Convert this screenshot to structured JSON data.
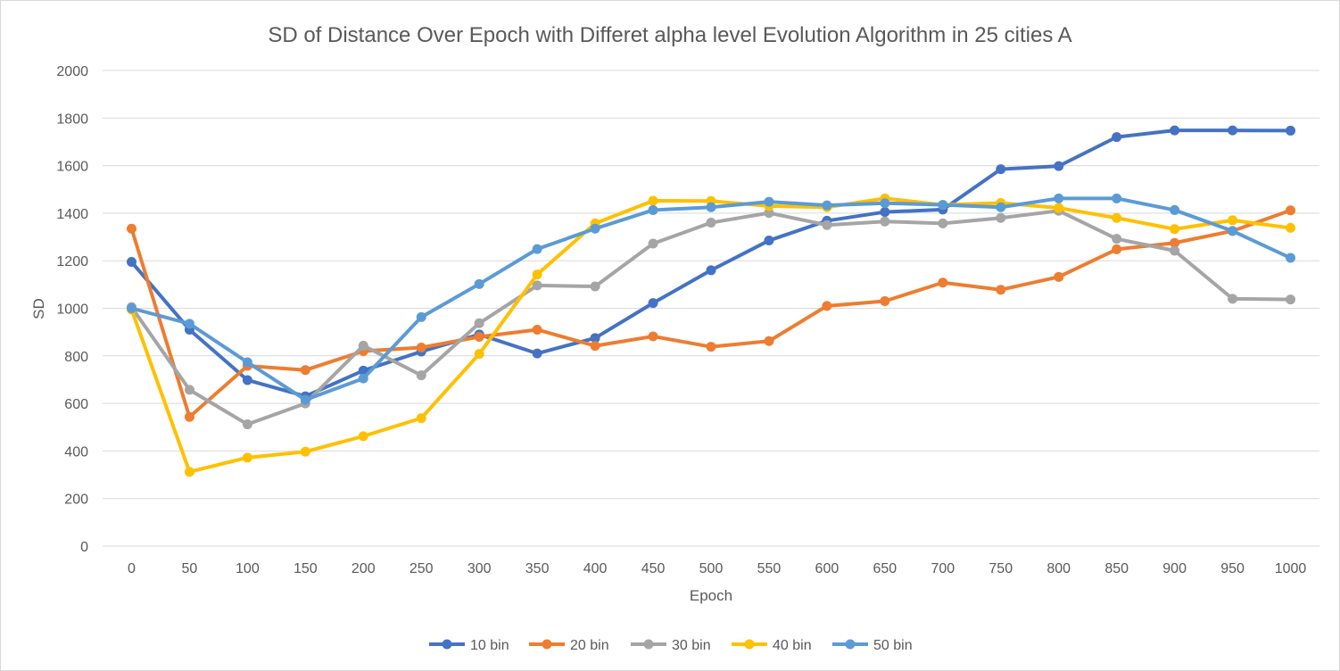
{
  "chart_data": {
    "type": "line",
    "title": "SD of Distance Over Epoch with Differet alpha level Evolution Algorithm in 25 cities A",
    "xlabel": "Epoch",
    "ylabel": "SD",
    "ylim": [
      0,
      2000
    ],
    "y_ticks": [
      "0",
      "200",
      "400",
      "600",
      "800",
      "1000",
      "1200",
      "1400",
      "1600",
      "1800",
      "2000"
    ],
    "grid": true,
    "legend_position": "bottom",
    "categories": [
      "0",
      "50",
      "100",
      "150",
      "200",
      "250",
      "300",
      "350",
      "400",
      "450",
      "500",
      "550",
      "600",
      "650",
      "700",
      "750",
      "800",
      "850",
      "900",
      "950",
      "1000"
    ],
    "series": [
      {
        "name": "10 bin",
        "color": "#4472C4",
        "values": [
          1195,
          910,
          698,
          630,
          738,
          818,
          890,
          810,
          875,
          1022,
          1160,
          1285,
          1368,
          1405,
          1415,
          1585,
          1598,
          1720,
          1748,
          1748,
          1747
        ]
      },
      {
        "name": "20 bin",
        "color": "#ED7D31",
        "values": [
          1335,
          543,
          758,
          740,
          820,
          835,
          880,
          910,
          842,
          882,
          838,
          862,
          1010,
          1030,
          1108,
          1078,
          1132,
          1248,
          1275,
          1325,
          1412
        ]
      },
      {
        "name": "30 bin",
        "color": "#A5A5A5",
        "values": [
          1005,
          657,
          512,
          600,
          843,
          718,
          937,
          1096,
          1092,
          1272,
          1360,
          1401,
          1350,
          1365,
          1357,
          1380,
          1410,
          1292,
          1242,
          1040,
          1037
        ]
      },
      {
        "name": "40 bin",
        "color": "#FFC000",
        "values": [
          995,
          312,
          372,
          397,
          462,
          538,
          808,
          1142,
          1357,
          1452,
          1451,
          1430,
          1425,
          1462,
          1435,
          1443,
          1422,
          1380,
          1333,
          1370,
          1338
        ]
      },
      {
        "name": "50 bin",
        "color": "#5B9BD5",
        "values": [
          1000,
          935,
          773,
          615,
          705,
          963,
          1102,
          1249,
          1335,
          1413,
          1425,
          1448,
          1433,
          1442,
          1435,
          1425,
          1462,
          1462,
          1413,
          1325,
          1212
        ]
      }
    ]
  }
}
